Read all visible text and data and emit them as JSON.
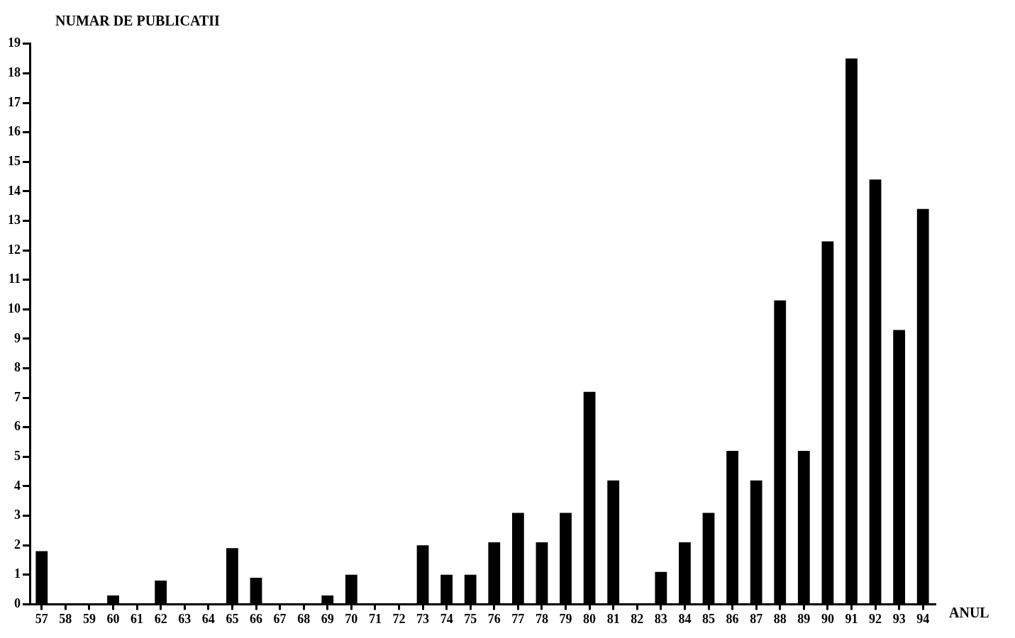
{
  "chart_data": {
    "type": "bar",
    "xlabel": "ANUL",
    "ylabel": "NUMAR DE PUBLICATII",
    "categories": [
      "57",
      "58",
      "59",
      "60",
      "61",
      "62",
      "63",
      "64",
      "65",
      "66",
      "67",
      "68",
      "69",
      "70",
      "71",
      "72",
      "73",
      "74",
      "75",
      "76",
      "77",
      "78",
      "79",
      "80",
      "81",
      "82",
      "83",
      "84",
      "85",
      "86",
      "87",
      "88",
      "89",
      "90",
      "91",
      "92",
      "93",
      "94"
    ],
    "values": [
      1.8,
      0,
      0,
      0.3,
      0,
      0.8,
      0,
      0,
      1.9,
      0.9,
      0,
      0,
      0.3,
      1.0,
      0,
      0,
      2.0,
      1.0,
      1.0,
      2.1,
      3.1,
      2.1,
      3.1,
      7.2,
      4.2,
      0,
      1.1,
      2.1,
      3.1,
      5.2,
      4.2,
      10.3,
      5.2,
      12.3,
      18.5,
      14.4,
      9.3,
      13.4
    ],
    "color": "#000000",
    "ylim": [
      0,
      19
    ],
    "yticks": [
      0,
      1,
      2,
      3,
      4,
      5,
      6,
      7,
      8,
      9,
      10,
      11,
      12,
      13,
      14,
      15,
      16,
      17,
      18,
      19
    ],
    "grid": false,
    "legend": false
  }
}
